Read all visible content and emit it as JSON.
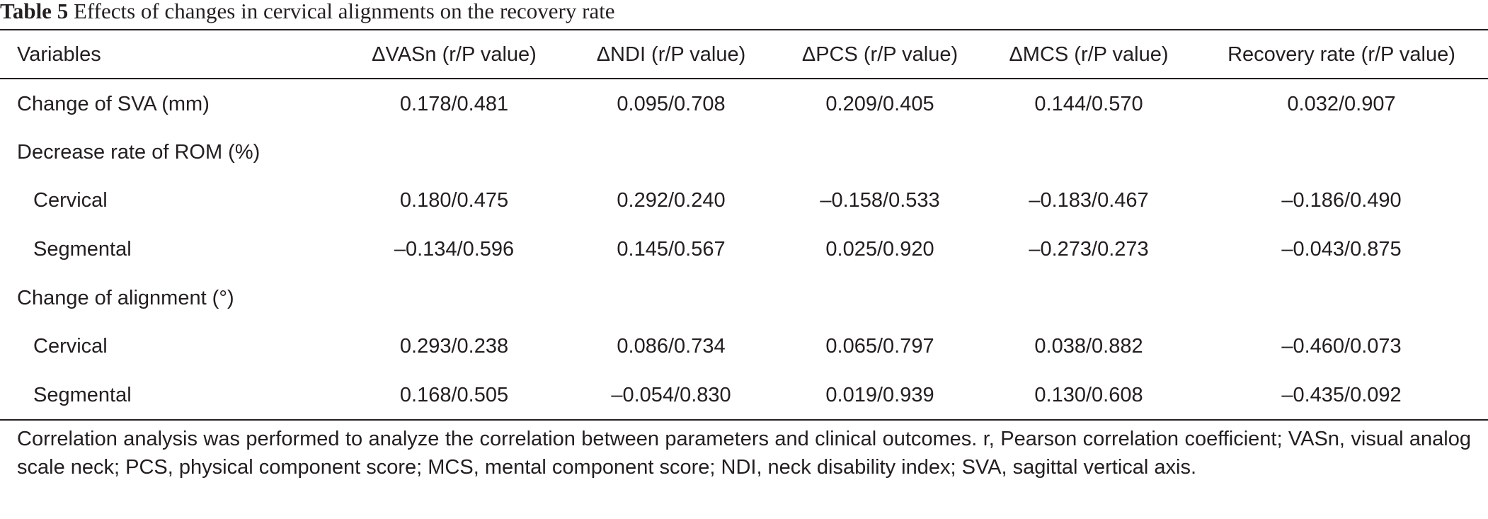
{
  "caption": {
    "label": "Table 5",
    "title": "Effects of changes in cervical alignments on the recovery rate"
  },
  "table": {
    "headers": [
      "Variables",
      "ΔVASn (r/P value)",
      "ΔNDI (r/P value)",
      "ΔPCS (r/P value)",
      "ΔMCS (r/P value)",
      "Recovery rate (r/P value)"
    ],
    "rows": [
      {
        "label": "Change of SVA (mm)",
        "values": [
          "0.178/0.481",
          "0.095/0.708",
          "0.209/0.405",
          "0.144/0.570",
          "0.032/0.907"
        ]
      },
      {
        "label": "Decrease rate of ROM (%)",
        "values": [
          "",
          "",
          "",
          "",
          ""
        ]
      },
      {
        "label": "Cervical",
        "values": [
          "0.180/0.475",
          "0.292/0.240",
          "–0.158/0.533",
          "–0.183/0.467",
          "–0.186/0.490"
        ]
      },
      {
        "label": "Segmental",
        "values": [
          "–0.134/0.596",
          "0.145/0.567",
          "0.025/0.920",
          "–0.273/0.273",
          "–0.043/0.875"
        ]
      },
      {
        "label": "Change of alignment (°)",
        "values": [
          "",
          "",
          "",
          "",
          ""
        ]
      },
      {
        "label": "Cervical",
        "values": [
          "0.293/0.238",
          "0.086/0.734",
          "0.065/0.797",
          "0.038/0.882",
          "–0.460/0.073"
        ]
      },
      {
        "label": "Segmental",
        "values": [
          "0.168/0.505",
          "–0.054/0.830",
          "0.019/0.939",
          "0.130/0.608",
          "–0.435/0.092"
        ]
      }
    ]
  },
  "footnote": "Correlation analysis was performed to analyze the correlation between parameters and clinical outcomes. r, Pearson correlation coefficient; VASn, visual analog scale neck; PCS, physical component score; MCS, mental component score; NDI, neck disability index; SVA, sagittal vertical axis."
}
